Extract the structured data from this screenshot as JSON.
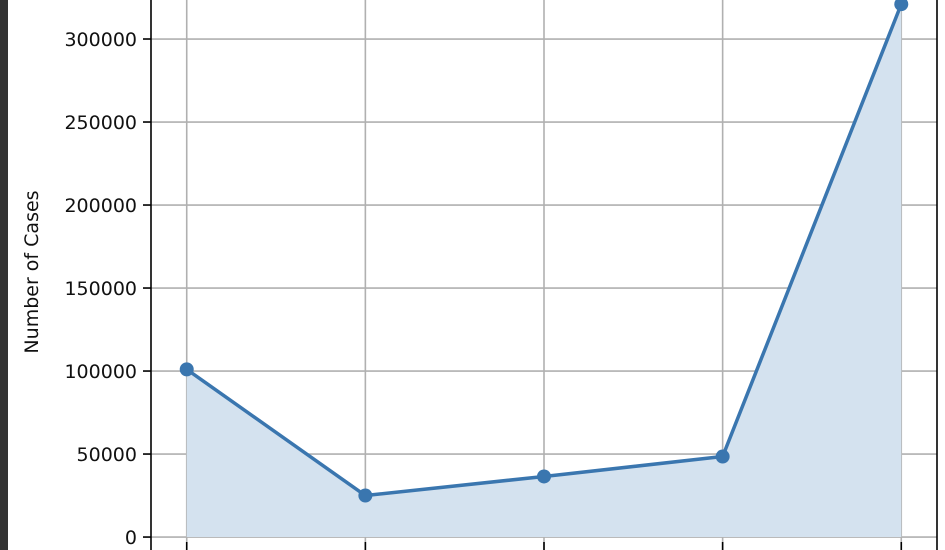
{
  "chart_data": {
    "type": "area",
    "title": "",
    "xlabel": "",
    "ylabel": "Number of Cases",
    "x": [
      0,
      1,
      2,
      3,
      4
    ],
    "values": [
      101000,
      25000,
      36500,
      48500,
      321000
    ],
    "ylim": [
      -7800,
      323500
    ],
    "xlim": [
      -0.2,
      4.2
    ],
    "yticks": [
      0,
      50000,
      100000,
      150000,
      200000,
      250000,
      300000
    ],
    "ytick_labels": [
      "0",
      "50000",
      "100000",
      "150000",
      "200000",
      "250000",
      "300000"
    ],
    "grid": true,
    "markers": true,
    "colors": {
      "line": "#3a76af",
      "fill": "#d4e2ef",
      "grid": "#b0b0b0"
    }
  }
}
